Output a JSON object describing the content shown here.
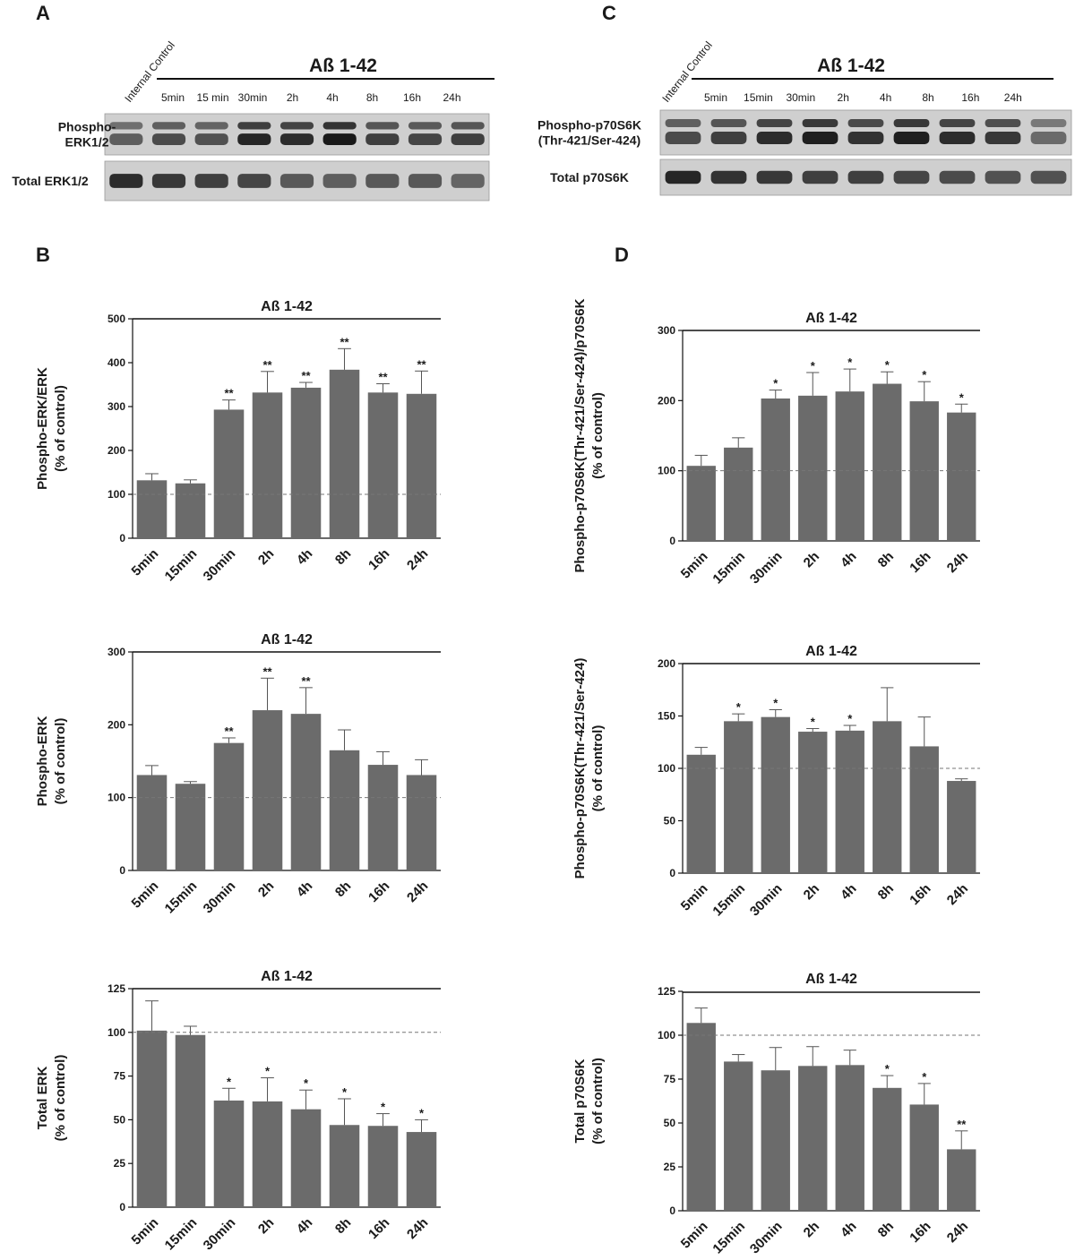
{
  "panels": {
    "a": "A",
    "b": "B",
    "c": "C",
    "d": "D"
  },
  "blots": [
    {
      "title": "Aß 1-42",
      "control": "Internal Control",
      "lanes": [
        "5min",
        "15 min",
        "30min",
        "2h",
        "4h",
        "8h",
        "16h",
        "24h"
      ],
      "rows": [
        {
          "label": [
            "Phospho-",
            "ERK1/2"
          ],
          "intensity": [
            0.45,
            0.6,
            0.55,
            0.9,
            0.85,
            1.0,
            0.7,
            0.65,
            0.7
          ],
          "bands": 2
        },
        {
          "label": [
            "Total ERK1/2"
          ],
          "intensity": [
            0.85,
            0.75,
            0.7,
            0.65,
            0.5,
            0.45,
            0.5,
            0.5,
            0.4
          ],
          "bands": 1
        }
      ]
    },
    {
      "title": "Aß 1-42",
      "control": "Internal Control",
      "lanes": [
        "5min",
        "15min",
        "30min",
        "2h",
        "4h",
        "8h",
        "16h",
        "24h"
      ],
      "rows": [
        {
          "label": [
            "Phospho-p70S6K",
            "(Thr-421/Ser-424)"
          ],
          "intensity": [
            0.6,
            0.7,
            0.85,
            0.95,
            0.8,
            0.95,
            0.85,
            0.75,
            0.35
          ],
          "bands": 2
        },
        {
          "label": [
            "Total p70S6K"
          ],
          "intensity": [
            0.9,
            0.8,
            0.75,
            0.7,
            0.7,
            0.65,
            0.6,
            0.55,
            0.55
          ],
          "bands": 1
        }
      ]
    }
  ],
  "chart_data": [
    {
      "type": "bar",
      "title": "Aß 1-42",
      "ylabel": "Phospho-ERK/ERK",
      "ylabel2": "(% of control)",
      "categories": [
        "5min",
        "15min",
        "30min",
        "2h",
        "4h",
        "8h",
        "16h",
        "24h"
      ],
      "values": [
        132,
        125,
        293,
        332,
        343,
        384,
        332,
        329
      ],
      "errors": [
        15,
        8,
        22,
        48,
        12,
        48,
        20,
        52
      ],
      "significance": [
        "",
        "",
        "**",
        "**",
        "**",
        "**",
        "**",
        "**"
      ],
      "ylim": [
        0,
        500
      ],
      "yticks": [
        0,
        100,
        200,
        300,
        400,
        500
      ],
      "reference_line": 100,
      "color": "#6b6b6b"
    },
    {
      "type": "bar",
      "title": "Aß 1-42",
      "ylabel": "Phospho-ERK",
      "ylabel2": "(% of control)",
      "categories": [
        "5min",
        "15min",
        "30min",
        "2h",
        "4h",
        "8h",
        "16h",
        "24h"
      ],
      "values": [
        131,
        119,
        175,
        220,
        215,
        165,
        145,
        131
      ],
      "errors": [
        13,
        3,
        7,
        44,
        36,
        28,
        18,
        21
      ],
      "significance": [
        "",
        "",
        "**",
        "**",
        "**",
        "",
        "",
        ""
      ],
      "ylim": [
        0,
        300
      ],
      "yticks": [
        0,
        100,
        200,
        300
      ],
      "reference_line": 100,
      "color": "#6b6b6b"
    },
    {
      "type": "bar",
      "title": "Aß 1-42",
      "ylabel": "Total ERK",
      "ylabel2": "(% of control)",
      "categories": [
        "5min",
        "15min",
        "30min",
        "2h",
        "4h",
        "8h",
        "16h",
        "24h"
      ],
      "values": [
        101,
        98.5,
        61,
        60.5,
        56,
        47,
        46.5,
        43
      ],
      "errors": [
        17,
        5,
        7,
        13.5,
        11,
        15,
        7,
        7
      ],
      "significance": [
        "",
        "",
        "*",
        "*",
        "*",
        "*",
        "*",
        "*"
      ],
      "ylim": [
        0,
        125
      ],
      "yticks": [
        0,
        25,
        50,
        75,
        100,
        125
      ],
      "reference_line": 100,
      "color": "#6b6b6b"
    },
    {
      "type": "bar",
      "title": "Aß 1-42",
      "ylabel": "Phospho-p70S6K(Thr-421/Ser-424)/p70S6K",
      "ylabel2": "(% of control)",
      "categories": [
        "5min",
        "15min",
        "30min",
        "2h",
        "4h",
        "8h",
        "16h",
        "24h"
      ],
      "values": [
        107,
        133,
        203,
        207,
        213,
        224,
        199,
        183
      ],
      "errors": [
        15,
        14,
        12,
        33,
        32,
        17,
        28,
        12
      ],
      "significance": [
        "",
        "",
        "*",
        "*",
        "*",
        "*",
        "*",
        "*"
      ],
      "ylim": [
        0,
        300
      ],
      "yticks": [
        0,
        100,
        200,
        300
      ],
      "reference_line": 100,
      "color": "#6b6b6b"
    },
    {
      "type": "bar",
      "title": "Aß 1-42",
      "ylabel": "Phospho-p70S6K(Thr-421/Ser-424)",
      "ylabel2": "(% of control)",
      "categories": [
        "5min",
        "15min",
        "30min",
        "2h",
        "4h",
        "8h",
        "16h",
        "24h"
      ],
      "values": [
        113,
        145,
        149,
        135,
        136,
        145,
        121,
        88
      ],
      "errors": [
        7,
        7,
        7,
        3,
        5,
        32,
        28,
        2
      ],
      "significance": [
        "",
        "*",
        "*",
        "*",
        "*",
        "",
        "",
        ""
      ],
      "ylim": [
        0,
        200
      ],
      "yticks": [
        0,
        50,
        100,
        150,
        200
      ],
      "reference_line": 100,
      "color": "#6b6b6b"
    },
    {
      "type": "bar",
      "title": "Aß 1-42",
      "ylabel": "Total p70S6K",
      "ylabel2": "(% of control)",
      "categories": [
        "5min",
        "15min",
        "30min",
        "2h",
        "4h",
        "8h",
        "16h",
        "24h"
      ],
      "values": [
        107,
        85,
        80,
        82.5,
        83,
        70,
        60.5,
        35
      ],
      "errors": [
        8.5,
        4,
        13,
        11,
        8.5,
        7,
        12,
        10.5
      ],
      "significance": [
        "",
        "",
        "",
        "",
        "",
        "*",
        "*",
        "**"
      ],
      "ylim": [
        0,
        125
      ],
      "yticks": [
        0,
        25,
        50,
        75,
        100,
        125
      ],
      "reference_line": 100,
      "color": "#6b6b6b"
    }
  ]
}
